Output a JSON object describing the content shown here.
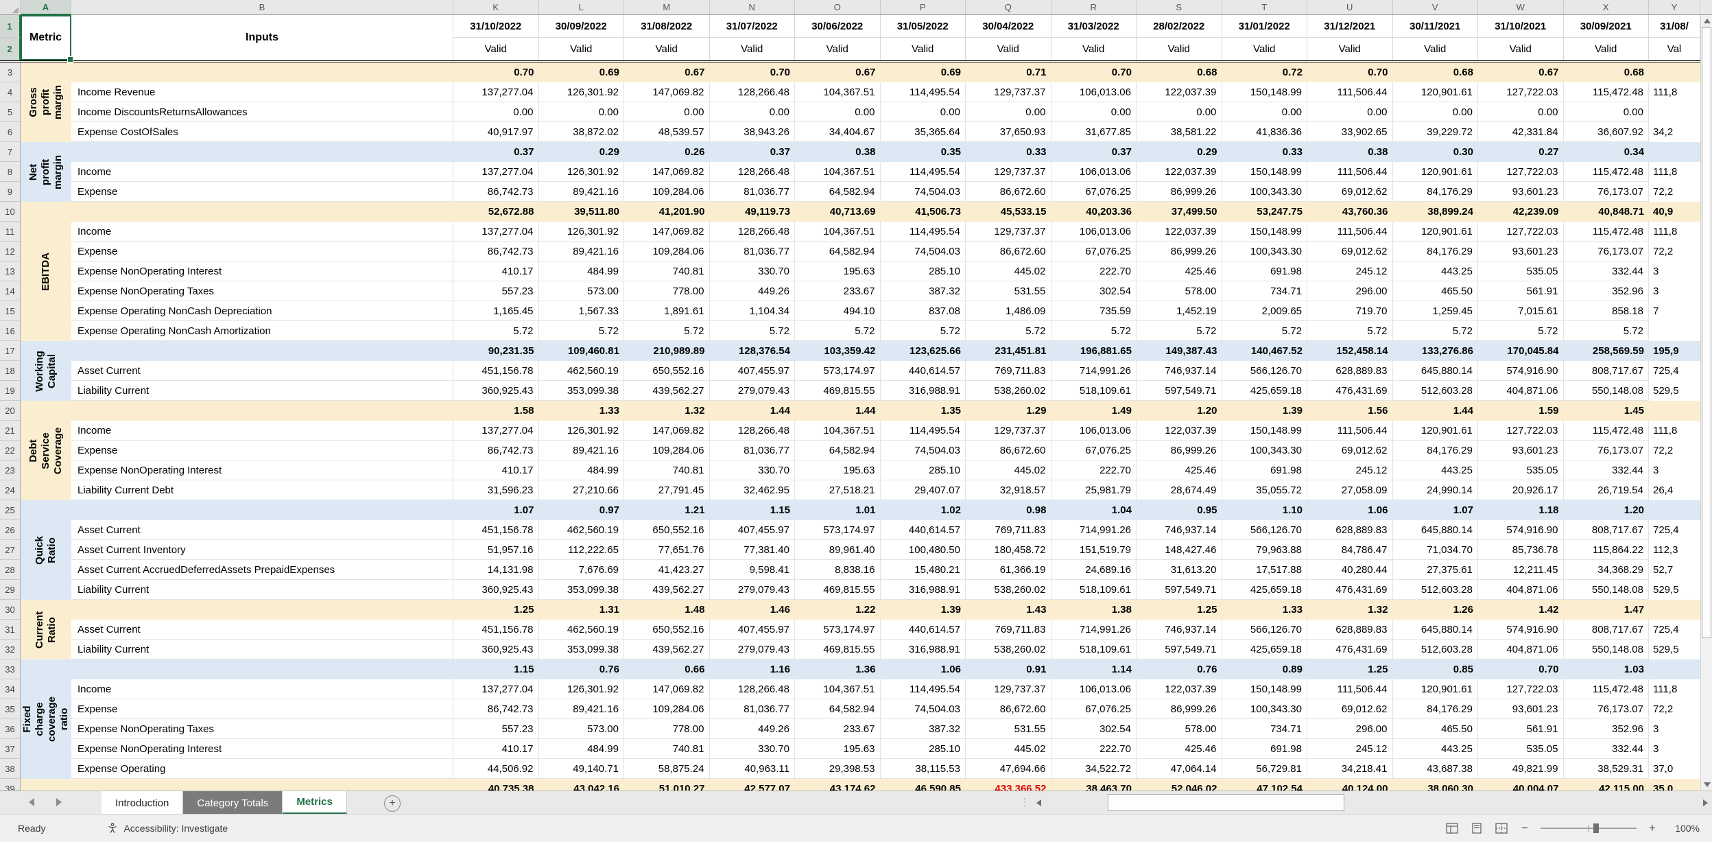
{
  "colors": {
    "accent_green": "#217346",
    "group_tan": "#FBEED0",
    "group_blue": "#DCE9F5",
    "negative_red": "#E00000"
  },
  "sheet": {
    "fixed_columns": [
      "A",
      "B"
    ],
    "columns": [
      "K",
      "L",
      "M",
      "N",
      "O",
      "P",
      "Q",
      "R",
      "S",
      "T",
      "U",
      "V",
      "W",
      "X"
    ],
    "stub_column": "Y",
    "header": {
      "metric": "Metric",
      "inputs": "Inputs",
      "dates": [
        "31/10/2022",
        "30/09/2022",
        "31/08/2022",
        "31/07/2022",
        "30/06/2022",
        "31/05/2022",
        "30/04/2022",
        "31/03/2022",
        "28/02/2022",
        "31/01/2022",
        "31/12/2021",
        "30/11/2021",
        "31/10/2021",
        "30/09/2021"
      ],
      "dates_stub": "31/08/",
      "status": "Valid",
      "status_stub": "Val"
    },
    "first_row": 3,
    "series": {
      "income": {
        "values": [
          "137,277.04",
          "126,301.92",
          "147,069.82",
          "128,266.48",
          "104,367.51",
          "114,495.54",
          "129,737.37",
          "106,013.06",
          "122,037.39",
          "150,148.99",
          "111,506.44",
          "120,901.61",
          "127,722.03",
          "115,472.48"
        ],
        "stub": "111,8"
      },
      "expense": {
        "values": [
          "86,742.73",
          "89,421.16",
          "109,284.06",
          "81,036.77",
          "64,582.94",
          "74,504.03",
          "86,672.60",
          "67,076.25",
          "86,999.26",
          "100,343.30",
          "69,012.62",
          "84,176.29",
          "93,601.23",
          "76,173.07"
        ],
        "stub": "72,2"
      },
      "zeros": {
        "values": [
          "0.00",
          "0.00",
          "0.00",
          "0.00",
          "0.00",
          "0.00",
          "0.00",
          "0.00",
          "0.00",
          "0.00",
          "0.00",
          "0.00",
          "0.00",
          "0.00"
        ],
        "stub": ""
      },
      "cost_of_sales": {
        "values": [
          "40,917.97",
          "38,872.02",
          "48,539.57",
          "38,943.26",
          "34,404.67",
          "35,365.64",
          "37,650.93",
          "31,677.85",
          "38,581.22",
          "41,836.36",
          "33,902.65",
          "39,229.72",
          "42,331.84",
          "36,607.92"
        ],
        "stub": "34,2"
      },
      "interest": {
        "values": [
          "410.17",
          "484.99",
          "740.81",
          "330.70",
          "195.63",
          "285.10",
          "445.02",
          "222.70",
          "425.46",
          "691.98",
          "245.12",
          "443.25",
          "535.05",
          "332.44"
        ],
        "stub": "3"
      },
      "taxes": {
        "values": [
          "557.23",
          "573.00",
          "778.00",
          "449.26",
          "233.67",
          "387.32",
          "531.55",
          "302.54",
          "578.00",
          "734.71",
          "296.00",
          "465.50",
          "561.91",
          "352.96"
        ],
        "stub": "3"
      },
      "depreciation": {
        "values": [
          "1,165.45",
          "1,567.33",
          "1,891.61",
          "1,104.34",
          "494.10",
          "837.08",
          "1,486.09",
          "735.59",
          "1,452.19",
          "2,009.65",
          "719.70",
          "1,259.45",
          "7,015.61",
          "858.18"
        ],
        "stub": "7"
      },
      "amortization": {
        "values": [
          "5.72",
          "5.72",
          "5.72",
          "5.72",
          "5.72",
          "5.72",
          "5.72",
          "5.72",
          "5.72",
          "5.72",
          "5.72",
          "5.72",
          "5.72",
          "5.72"
        ],
        "stub": ""
      },
      "asset_current": {
        "values": [
          "451,156.78",
          "462,560.19",
          "650,552.16",
          "407,455.97",
          "573,174.97",
          "440,614.57",
          "769,711.83",
          "714,991.26",
          "746,937.14",
          "566,126.70",
          "628,889.83",
          "645,880.14",
          "574,916.90",
          "808,717.67"
        ],
        "stub": "725,4"
      },
      "liability_current": {
        "values": [
          "360,925.43",
          "353,099.38",
          "439,562.27",
          "279,079.43",
          "469,815.55",
          "316,988.91",
          "538,260.02",
          "518,109.61",
          "597,549.71",
          "425,659.18",
          "476,431.69",
          "512,603.28",
          "404,871.06",
          "550,148.08"
        ],
        "stub": "529,5"
      },
      "liability_current_debt": {
        "values": [
          "31,596.23",
          "27,210.66",
          "27,791.45",
          "32,462.95",
          "27,518.21",
          "29,407.07",
          "32,918.57",
          "25,981.79",
          "28,674.49",
          "35,055.72",
          "27,058.09",
          "24,990.14",
          "20,926.17",
          "26,719.54"
        ],
        "stub": "26,4"
      },
      "inventory": {
        "values": [
          "51,957.16",
          "112,222.65",
          "77,651.76",
          "77,381.40",
          "89,961.40",
          "100,480.50",
          "180,458.72",
          "151,519.79",
          "148,427.46",
          "79,963.88",
          "84,786.47",
          "71,034.70",
          "85,736.78",
          "115,864.22"
        ],
        "stub": "112,3"
      },
      "accrued_prepaid": {
        "values": [
          "14,131.98",
          "7,676.69",
          "41,423.27",
          "9,598.41",
          "8,838.16",
          "15,480.21",
          "61,366.19",
          "24,689.16",
          "31,613.20",
          "17,517.88",
          "40,280.44",
          "27,375.61",
          "12,211.45",
          "34,368.29"
        ],
        "stub": "52,7"
      },
      "expense_operating": {
        "values": [
          "44,506.92",
          "49,140.71",
          "58,875.24",
          "40,963.11",
          "29,398.53",
          "38,115.53",
          "47,694.66",
          "34,522.72",
          "47,064.14",
          "56,729.81",
          "34,218.41",
          "43,687.38",
          "49,821.99",
          "38,529.31"
        ],
        "stub": "37,0"
      }
    },
    "groups": [
      {
        "label": "Gross profit\nmargin",
        "color": "tan",
        "summary": {
          "values": [
            "0.70",
            "0.69",
            "0.67",
            "0.70",
            "0.67",
            "0.69",
            "0.71",
            "0.70",
            "0.68",
            "0.72",
            "0.70",
            "0.68",
            "0.67",
            "0.68"
          ],
          "stub": ""
        },
        "rows": [
          {
            "label": "Income Revenue",
            "ref": "income"
          },
          {
            "label": "Income DiscountsReturnsAllowances",
            "ref": "zeros"
          },
          {
            "label": "Expense CostOfSales",
            "ref": "cost_of_sales"
          }
        ]
      },
      {
        "label": "Net\nprofit\nmargin",
        "color": "blue",
        "summary": {
          "values": [
            "0.37",
            "0.29",
            "0.26",
            "0.37",
            "0.38",
            "0.35",
            "0.33",
            "0.37",
            "0.29",
            "0.33",
            "0.38",
            "0.30",
            "0.27",
            "0.34"
          ],
          "stub": ""
        },
        "rows": [
          {
            "label": "Income",
            "ref": "income"
          },
          {
            "label": "Expense",
            "ref": "expense"
          }
        ]
      },
      {
        "label": "EBITDA",
        "color": "tan",
        "summary": {
          "values": [
            "52,672.88",
            "39,511.80",
            "41,201.90",
            "49,119.73",
            "40,713.69",
            "41,506.73",
            "45,533.15",
            "40,203.36",
            "37,499.50",
            "53,247.75",
            "43,760.36",
            "38,899.24",
            "42,239.09",
            "40,848.71"
          ],
          "stub": "40,9"
        },
        "rows": [
          {
            "label": "Income",
            "ref": "income"
          },
          {
            "label": "Expense",
            "ref": "expense"
          },
          {
            "label": "Expense NonOperating Interest",
            "ref": "interest"
          },
          {
            "label": "Expense NonOperating Taxes",
            "ref": "taxes"
          },
          {
            "label": "Expense Operating NonCash Depreciation",
            "ref": "depreciation"
          },
          {
            "label": "Expense Operating NonCash Amortization",
            "ref": "amortization"
          }
        ]
      },
      {
        "label": "Working\nCapital",
        "color": "blue",
        "summary": {
          "values": [
            "90,231.35",
            "109,460.81",
            "210,989.89",
            "128,376.54",
            "103,359.42",
            "123,625.66",
            "231,451.81",
            "196,881.65",
            "149,387.43",
            "140,467.52",
            "152,458.14",
            "133,276.86",
            "170,045.84",
            "258,569.59"
          ],
          "stub": "195,9"
        },
        "rows": [
          {
            "label": "Asset Current",
            "ref": "asset_current"
          },
          {
            "label": "Liability Current",
            "ref": "liability_current"
          }
        ]
      },
      {
        "label": "Debt Service\nCoverage",
        "color": "tan",
        "summary": {
          "values": [
            "1.58",
            "1.33",
            "1.32",
            "1.44",
            "1.44",
            "1.35",
            "1.29",
            "1.49",
            "1.20",
            "1.39",
            "1.56",
            "1.44",
            "1.59",
            "1.45"
          ],
          "stub": ""
        },
        "rows": [
          {
            "label": "Income",
            "ref": "income"
          },
          {
            "label": "Expense",
            "ref": "expense"
          },
          {
            "label": "Expense NonOperating Interest",
            "ref": "interest"
          },
          {
            "label": "Liability Current Debt",
            "ref": "liability_current_debt"
          }
        ]
      },
      {
        "label": "Quick Ratio",
        "color": "blue",
        "summary": {
          "values": [
            "1.07",
            "0.97",
            "1.21",
            "1.15",
            "1.01",
            "1.02",
            "0.98",
            "1.04",
            "0.95",
            "1.10",
            "1.06",
            "1.07",
            "1.18",
            "1.20"
          ],
          "stub": ""
        },
        "rows": [
          {
            "label": "Asset Current",
            "ref": "asset_current"
          },
          {
            "label": "Asset Current Inventory",
            "ref": "inventory"
          },
          {
            "label": "Asset Current AccruedDeferredAssets PrepaidExpenses",
            "ref": "accrued_prepaid"
          },
          {
            "label": "Liability Current",
            "ref": "liability_current"
          }
        ]
      },
      {
        "label": "Current\nRatio",
        "color": "tan",
        "summary": {
          "values": [
            "1.25",
            "1.31",
            "1.48",
            "1.46",
            "1.22",
            "1.39",
            "1.43",
            "1.38",
            "1.25",
            "1.33",
            "1.32",
            "1.26",
            "1.42",
            "1.47"
          ],
          "stub": ""
        },
        "rows": [
          {
            "label": "Asset Current",
            "ref": "asset_current"
          },
          {
            "label": "Liability Current",
            "ref": "liability_current"
          }
        ]
      },
      {
        "label": "Fixed charge\ncoverage ratio",
        "color": "blue",
        "summary": {
          "values": [
            "1.15",
            "0.76",
            "0.66",
            "1.16",
            "1.36",
            "1.06",
            "0.91",
            "1.14",
            "0.76",
            "0.89",
            "1.25",
            "0.85",
            "0.70",
            "1.03"
          ],
          "stub": ""
        },
        "rows": [
          {
            "label": "Income",
            "ref": "income"
          },
          {
            "label": "Expense",
            "ref": "expense"
          },
          {
            "label": "Expense NonOperating Taxes",
            "ref": "taxes"
          },
          {
            "label": "Expense NonOperating Interest",
            "ref": "interest"
          },
          {
            "label": "Expense Operating",
            "ref": "expense_operating"
          }
        ]
      }
    ],
    "partial_row": {
      "color": "tan",
      "red_index": 6,
      "values": [
        "40,735.38",
        "43,042.16",
        "51,010.27",
        "42,577.07",
        "43,174.62",
        "46,590.85",
        "433,366.52",
        "38,463.70",
        "52,046.02",
        "47,102.54",
        "40,124.00",
        "38,060.30",
        "40,004.07",
        "42,115.00"
      ],
      "stub": "35,0"
    }
  },
  "tabs": {
    "items": [
      {
        "label": "Introduction"
      },
      {
        "label": "Category Totals"
      },
      {
        "label": "Metrics",
        "active": true
      }
    ]
  },
  "statusbar": {
    "ready": "Ready",
    "accessibility": "Accessibility: Investigate",
    "zoom_level": "100%"
  }
}
